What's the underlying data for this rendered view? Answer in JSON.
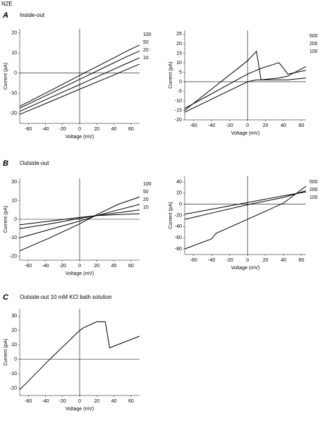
{
  "figure_label": "N2E",
  "sections": [
    {
      "letter": "A",
      "title": "Inside-out"
    },
    {
      "letter": "B",
      "title": "Outside-out"
    },
    {
      "letter": "C",
      "title": "Outside-out 10 mM KCl bath solution"
    }
  ],
  "chart_data": [
    {
      "type": "line",
      "x_label": "Voltage (mV)",
      "y_label": "Current (pA)",
      "x": [
        -70,
        -35,
        0,
        35,
        55,
        70
      ],
      "xlim": [
        -70,
        70
      ],
      "xticks": [
        -60,
        -40,
        -20,
        0,
        20,
        40,
        60
      ],
      "ylim": [
        -25,
        22
      ],
      "yticks": [
        20,
        10,
        0,
        -10,
        -20
      ],
      "series": [
        {
          "name": "100",
          "color": "#000000",
          "values": [
            -16.5,
            -8.9,
            -1.1,
            6.5,
            10.9,
            14
          ]
        },
        {
          "name": "50",
          "color": "#000000",
          "values": [
            -17.5,
            -10.3,
            -3.1,
            4.1,
            8.2,
            11
          ]
        },
        {
          "name": "20",
          "color": "#000000",
          "values": [
            -19,
            -12.3,
            -5.7,
            1,
            4.8,
            7.6
          ]
        },
        {
          "name": "10",
          "color": "#000000",
          "values": [
            -20.5,
            -14.3,
            -8,
            -1.8,
            1.8,
            4.5
          ]
        }
      ]
    },
    {
      "type": "line",
      "x_label": "Voltage (mV)",
      "y_label": "Current (pA)",
      "x": [
        -70,
        -35,
        0,
        10,
        15,
        35,
        45,
        65
      ],
      "xlim": [
        -70,
        65
      ],
      "xticks": [
        -60,
        -40,
        -20,
        0,
        20,
        40,
        60
      ],
      "ylim": [
        -20,
        27
      ],
      "yticks": [
        25,
        20,
        15,
        10,
        5,
        0,
        -5,
        -10,
        -15,
        -20
      ],
      "series": [
        {
          "name": "500",
          "color": "#000000",
          "values": [
            -15,
            -2,
            11,
            16,
            1,
            2,
            3,
            8
          ]
        },
        {
          "name": "200",
          "color": "#000000",
          "values": [
            -14,
            -5,
            4,
            6,
            7,
            10,
            4,
            6
          ]
        },
        {
          "name": "100",
          "color": "#000000",
          "values": [
            -16,
            -8,
            0,
            1,
            1,
            1,
            1,
            2
          ]
        }
      ]
    },
    {
      "type": "line",
      "x_label": "Voltage (mV)",
      "y_label": "Current (pA)",
      "x": [
        -70,
        -35,
        0,
        20,
        45,
        70
      ],
      "xlim": [
        -70,
        70
      ],
      "xticks": [
        -60,
        -40,
        -20,
        0,
        20,
        40,
        60
      ],
      "ylim": [
        -22,
        22
      ],
      "yticks": [
        20,
        10,
        0,
        -10,
        -20
      ],
      "series": [
        {
          "name": "100",
          "color": "#000000",
          "values": [
            -17,
            -10,
            -2.5,
            2.5,
            8,
            12
          ]
        },
        {
          "name": "50",
          "color": "#000000",
          "values": [
            -10,
            -5.5,
            -1,
            2,
            5,
            8
          ]
        },
        {
          "name": "20",
          "color": "#000000",
          "values": [
            -5,
            -2.5,
            0.5,
            2,
            3.5,
            5
          ]
        },
        {
          "name": "10",
          "color": "#000000",
          "values": [
            -3,
            -1,
            1,
            2,
            2.5,
            3
          ]
        }
      ]
    },
    {
      "type": "line",
      "x_label": "Voltage (mV)",
      "y_label": "Current (pA)",
      "x": [
        -70,
        -40,
        -35,
        0,
        40,
        65
      ],
      "xlim": [
        -70,
        65
      ],
      "xticks": [
        -60,
        -40,
        -20,
        0,
        20,
        40,
        60
      ],
      "ylim": [
        -90,
        50
      ],
      "yticks": [
        40,
        20,
        0,
        -20,
        -40,
        -60,
        -80
      ],
      "series": [
        {
          "name": "500",
          "color": "#000000",
          "values": [
            -80,
            -62,
            -52,
            -27,
            2,
            32
          ]
        },
        {
          "name": "200",
          "color": "#000000",
          "values": [
            -27,
            -16,
            -14,
            -1,
            12,
            24
          ]
        },
        {
          "name": "100",
          "color": "#000000",
          "values": [
            -18,
            -9,
            -7.5,
            3,
            15,
            22
          ]
        }
      ]
    },
    {
      "type": "line",
      "x_label": "Voltage (mV)",
      "y_label": "Current (pA)",
      "x": [
        -70,
        -35,
        0,
        5,
        20,
        30,
        35,
        70
      ],
      "xlim": [
        -70,
        70
      ],
      "xticks": [
        -60,
        -40,
        -20,
        0,
        20,
        40,
        60
      ],
      "ylim": [
        -25,
        35
      ],
      "yticks": [
        30,
        20,
        10,
        0,
        -10,
        -20
      ],
      "series": [
        {
          "color": "#000000",
          "values": [
            -21,
            0,
            20,
            22,
            26,
            26,
            8,
            16
          ]
        }
      ]
    }
  ]
}
